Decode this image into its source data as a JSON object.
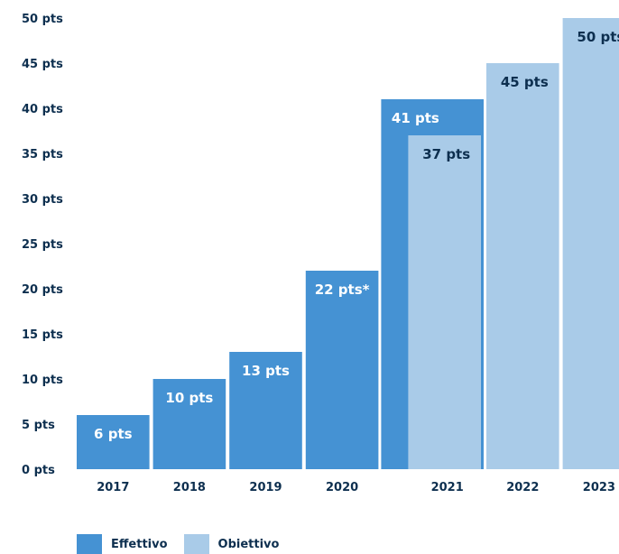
{
  "chart_data": {
    "type": "bar",
    "yticks": [
      "0 pts",
      "5 pts",
      "10 pts",
      "15 pts",
      "20 pts",
      "25 pts",
      "30 pts",
      "35 pts",
      "40 pts",
      "45 pts",
      "50 pts"
    ],
    "ylim": [
      0,
      50
    ],
    "categories": [
      "2017",
      "2018",
      "2019",
      "2020",
      "2021",
      "2022",
      "2023"
    ],
    "series": [
      {
        "name": "Effettivo",
        "color": "#4592d3",
        "label_color": "#ffffff",
        "values": [
          6,
          10,
          13,
          22,
          41,
          null,
          null
        ],
        "labels": [
          "6 pts",
          "10 pts",
          "13 pts",
          "22 pts*",
          "41 pts",
          "",
          ""
        ]
      },
      {
        "name": "Obiettivo",
        "color": "#a9cbe8",
        "label_color": "#0d2f4f",
        "values": [
          null,
          null,
          null,
          null,
          37,
          45,
          50
        ],
        "labels": [
          "",
          "",
          "",
          "",
          "37 pts",
          "45 pts",
          "50 pts"
        ]
      }
    ],
    "grid": false,
    "legend_position": "bottom-left"
  }
}
